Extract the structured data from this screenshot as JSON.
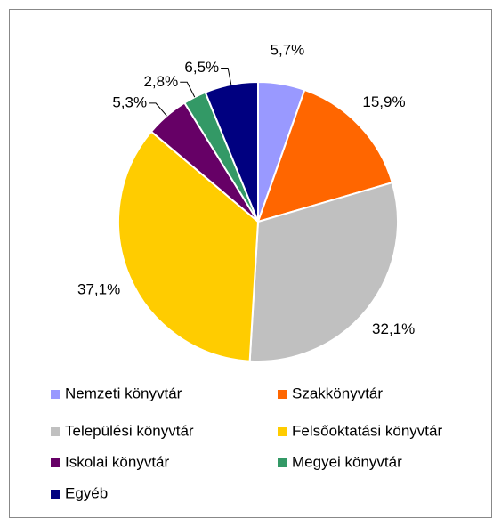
{
  "chart_data": {
    "type": "pie",
    "categories": [
      "Nemzeti könyvtár",
      "Szakkönyvtár",
      "Települési könyvtár",
      "Felsőoktatási könyvtár",
      "Iskolai könyvtár",
      "Megyei könyvtár",
      "Egyéb"
    ],
    "values": [
      5.7,
      15.9,
      32.1,
      37.1,
      5.3,
      2.8,
      6.5
    ],
    "value_labels": [
      "5,7%",
      "15,9%",
      "32,1%",
      "37,1%",
      "5,3%",
      "2,8%",
      "6,5%"
    ],
    "colors": [
      "#9999ff",
      "#ff6600",
      "#c0c0c0",
      "#ffcc00",
      "#660066",
      "#339966",
      "#000080"
    ],
    "legend": "bottom"
  }
}
